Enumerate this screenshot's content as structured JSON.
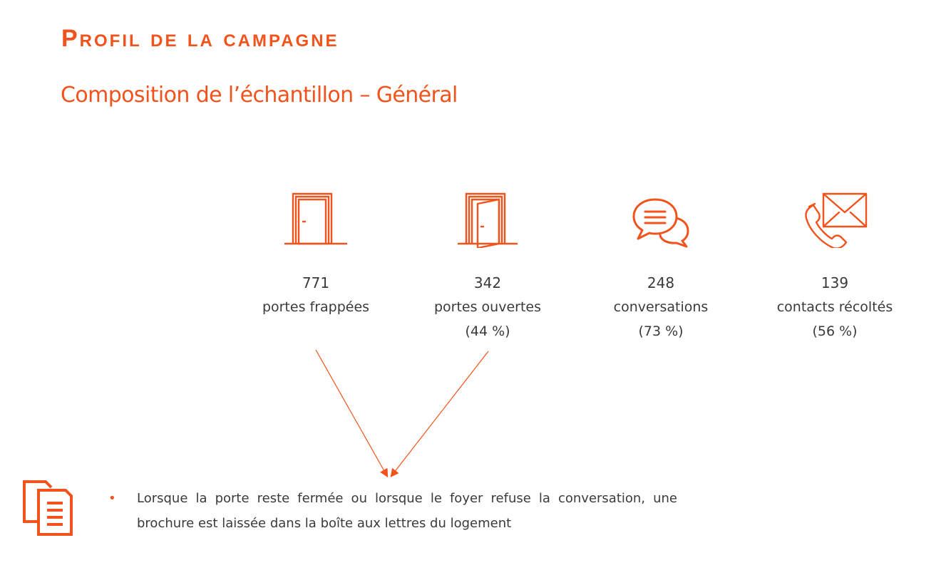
{
  "header": {
    "title": "Profil de la campagne",
    "subtitle": "Composition de l’échantillon – Général"
  },
  "metrics": [
    {
      "icon": "closed-door-icon",
      "value": "771",
      "label": "portes frappées",
      "pct": ""
    },
    {
      "icon": "open-door-icon",
      "value": "342",
      "label": "portes ouvertes",
      "pct": "(44 %)"
    },
    {
      "icon": "chat-bubbles-icon",
      "value": "248",
      "label": "conversations",
      "pct": "(73 %)"
    },
    {
      "icon": "phone-envelope-icon",
      "value": "139",
      "label": "contacts récoltés",
      "pct": "(56 %)"
    }
  ],
  "note": {
    "icon": "document-icon",
    "text": "Lorsque la porte reste fermée ou lorsque le foyer refuse la conversation, une brochure est laissée dans la boîte aux lettres du logement"
  },
  "colors": {
    "accent": "#f2521b",
    "text": "#3a3a3a"
  }
}
